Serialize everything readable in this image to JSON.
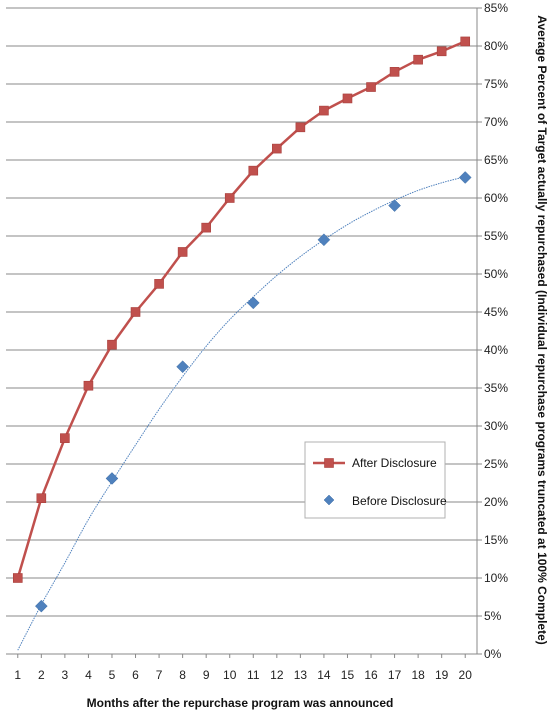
{
  "chart_data": {
    "type": "line",
    "title": "",
    "xlabel": "Months after the repurchase program was announced",
    "ylabel": "Average Percent of Target actually repurchased (Individual repurchase programs truncated at 100% Complete)",
    "x": [
      1,
      2,
      3,
      4,
      5,
      6,
      7,
      8,
      9,
      10,
      11,
      12,
      13,
      14,
      15,
      16,
      17,
      18,
      19,
      20
    ],
    "x_ticks": [
      "1",
      "2",
      "3",
      "4",
      "5",
      "6",
      "7",
      "8",
      "9",
      "10",
      "11",
      "12",
      "13",
      "14",
      "15",
      "16",
      "17",
      "18",
      "19",
      "20"
    ],
    "y_ticks": [
      "0%",
      "5%",
      "10%",
      "15%",
      "20%",
      "25%",
      "30%",
      "35%",
      "40%",
      "45%",
      "50%",
      "55%",
      "60%",
      "65%",
      "70%",
      "75%",
      "80%",
      "85%"
    ],
    "ylim": [
      0,
      85
    ],
    "y_unit": "percent",
    "y_axis_side": "right",
    "grid": "horizontal",
    "legend_position": "center-right",
    "series": [
      {
        "name": "After Disclosure",
        "color": "#c0504d",
        "marker": "square",
        "line": true,
        "x": [
          1,
          2,
          3,
          4,
          5,
          6,
          7,
          8,
          9,
          10,
          11,
          12,
          13,
          14,
          15,
          16,
          17,
          18,
          19,
          20
        ],
        "values": [
          10.0,
          20.5,
          28.4,
          35.3,
          40.7,
          45.0,
          48.7,
          52.9,
          56.1,
          60.0,
          63.6,
          66.5,
          69.3,
          71.5,
          73.1,
          74.6,
          76.6,
          78.2,
          79.3,
          80.6
        ]
      },
      {
        "name": "Before Disclosure",
        "color": "#4f81bd",
        "marker": "diamond",
        "line": false,
        "x": [
          2,
          5,
          8,
          11,
          14,
          17,
          20
        ],
        "values": [
          6.3,
          23.1,
          37.8,
          46.2,
          54.5,
          59.0,
          62.7
        ]
      }
    ],
    "trendline": {
      "series": "Before Disclosure",
      "color": "#4f81bd",
      "x": [
        1,
        2,
        3,
        4,
        5,
        6,
        7,
        8,
        9,
        10,
        11,
        12,
        13,
        14,
        15,
        16,
        17,
        18,
        19,
        20
      ],
      "values": [
        0.5,
        6.5,
        12.0,
        17.7,
        22.7,
        27.5,
        32.2,
        36.5,
        40.5,
        44.0,
        47.0,
        49.8,
        52.3,
        54.5,
        56.5,
        58.2,
        59.7,
        61.0,
        62.0,
        62.8
      ]
    }
  }
}
